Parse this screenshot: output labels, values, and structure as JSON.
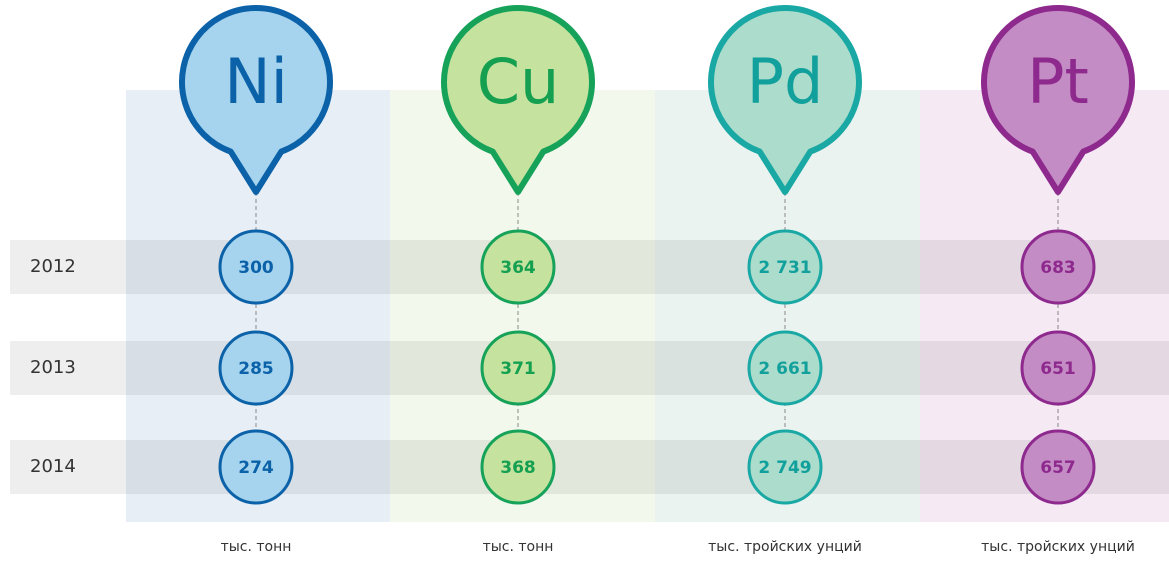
{
  "years": [
    "2012",
    "2013",
    "2014"
  ],
  "metals": [
    {
      "symbol": "Ni",
      "values": [
        "300",
        "285",
        "274"
      ],
      "unit": "тыс. тонн"
    },
    {
      "symbol": "Cu",
      "values": [
        "364",
        "371",
        "368"
      ],
      "unit": "тыс. тонн"
    },
    {
      "symbol": "Pd",
      "values": [
        "2 731",
        "2 661",
        "2 749"
      ],
      "unit": "тыс. тройских унций"
    },
    {
      "symbol": "Pt",
      "values": [
        "683",
        "651",
        "657"
      ],
      "unit": "тыс. тройских унций"
    }
  ]
}
